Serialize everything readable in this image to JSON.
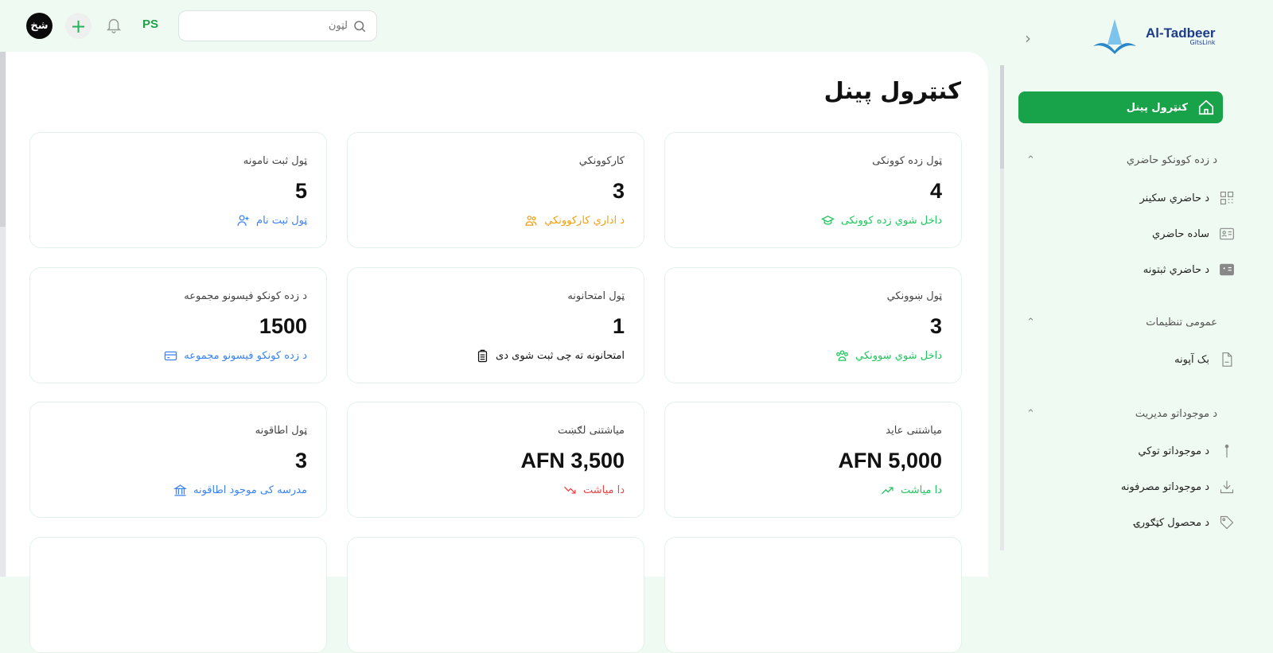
{
  "header": {
    "avatar": "شخ",
    "lang": "PS",
    "search_placeholder": "لټون"
  },
  "page": {
    "title": "کنټرول پینل"
  },
  "cards": [
    {
      "title": "ټول زده کوونکی",
      "value": "4",
      "sub": "داخل شوي زده کوونکی",
      "color": "#22c55e",
      "icon": "graduation-cap-icon"
    },
    {
      "title": "کارکوونکي",
      "value": "3",
      "sub": "د اداري کارکوونکي",
      "color": "#f59e0b",
      "icon": "users-icon"
    },
    {
      "title": "ټول ثبت نامونه",
      "value": "5",
      "sub": "ټول ثبت نام",
      "color": "#3b82f6",
      "icon": "user-plus-icon"
    },
    {
      "title": "ټول ښوونکي",
      "value": "3",
      "sub": "داخل شوي ښوونکي",
      "color": "#22c55e",
      "icon": "group-icon"
    },
    {
      "title": "ټول امتحانونه",
      "value": "1",
      "sub": "امتحانونه ته چی ثبت شوی دی",
      "color": "#111111",
      "icon": "clipboard-icon"
    },
    {
      "title": "د زده کونکو فیسونو مجموعه",
      "value": "1500",
      "sub": "د زده کونکو فیسونو مجموعه",
      "color": "#3b82f6",
      "icon": "credit-card-icon"
    },
    {
      "title": "میاشتنی عاید",
      "value": "AFN 5,000",
      "sub": "دا میاشت",
      "color": "#22c55e",
      "icon": "trending-up-icon"
    },
    {
      "title": "میاشتنی لګښت",
      "value": "AFN 3,500",
      "sub": "دا میاشت",
      "color": "#ef4444",
      "icon": "trending-down-icon"
    },
    {
      "title": "ټول اطاقونه",
      "value": "3",
      "sub": "مدرسه کی موجود اطاقونه",
      "color": "#3b82f6",
      "icon": "building-icon"
    }
  ],
  "sidebar": {
    "logo": {
      "name": "Al-Tadbeer",
      "sub": "GitsLink"
    },
    "active": "کنټرول پینل",
    "sections": [
      {
        "label": "د زده کوونکو حاضري",
        "items": [
          "د حاضري سکینر",
          "ساده حاضري",
          "د حاضري ثبتونه"
        ]
      },
      {
        "label": "عمومی تنظیمات",
        "items": [
          "بک آپونه"
        ]
      },
      {
        "label": "د موجوداتو مدیریت",
        "items": [
          "د موجوداتو توکي",
          "د موجوداتو مصرفونه",
          "د محصول کټګورۍ"
        ]
      }
    ]
  }
}
